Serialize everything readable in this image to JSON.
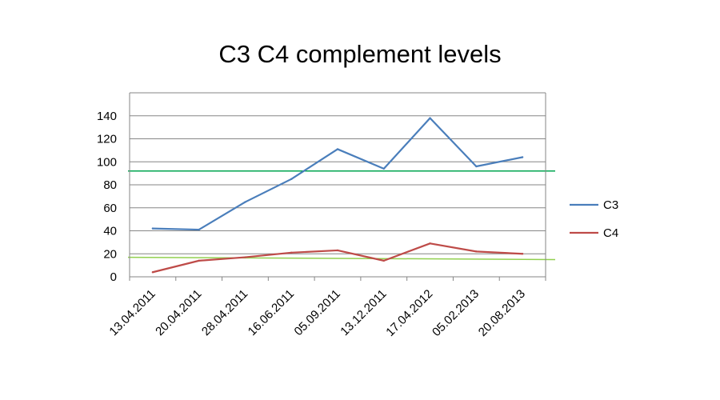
{
  "chart_data": {
    "type": "line",
    "title": "C3 C4 complement levels",
    "xlabel": "",
    "ylabel": "",
    "categories": [
      "13.04.2011",
      "20.04.2011",
      "28.04.2011",
      "16.06.2011",
      "05.09.2011",
      "13.12.2011",
      "17.04.2012",
      "05.02.2013",
      "20.08.2013"
    ],
    "series": [
      {
        "name": "C3",
        "color": "#4a7ebb",
        "values": [
          42,
          41,
          65,
          85,
          111,
          94,
          138,
          96,
          104
        ]
      },
      {
        "name": "C4",
        "color": "#be4b48",
        "values": [
          4,
          14,
          17,
          21,
          23,
          14,
          29,
          22,
          20
        ]
      }
    ],
    "reference_lines": [
      {
        "color": "#00a550",
        "values": [
          92,
          92
        ]
      },
      {
        "color": "#92d050",
        "values": [
          17,
          15
        ]
      }
    ],
    "ylim": [
      0,
      160
    ],
    "yticks": [
      0,
      20,
      40,
      60,
      80,
      100,
      120,
      140
    ],
    "grid": true,
    "legend_position": "right"
  }
}
